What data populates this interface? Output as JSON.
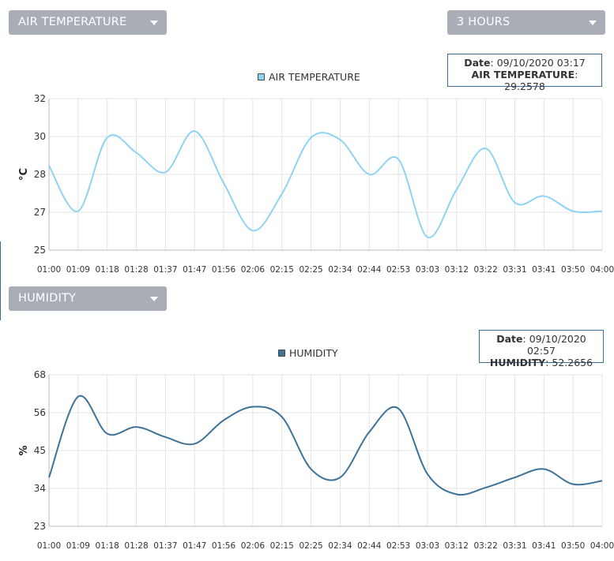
{
  "controls": {
    "range_selector": {
      "value": "3 HOURS"
    }
  },
  "charts": [
    {
      "selector_label": "AIR TEMPERATURE",
      "tooltip": {
        "date_label": "Date",
        "date_value": "09/10/2020 03:17",
        "series_label": "AIR TEMPERATURE",
        "series_value": "29.2578"
      }
    },
    {
      "selector_label": "HUMIDITY",
      "tooltip": {
        "date_label": "Date",
        "date_value": "09/10/2020 02:57",
        "series_label": "HUMIDITY",
        "series_value": "52.2656"
      }
    }
  ],
  "chart_data": [
    {
      "type": "line",
      "x": [
        "01:00",
        "01:09",
        "01:18",
        "01:28",
        "01:37",
        "01:47",
        "01:56",
        "02:06",
        "02:15",
        "02:25",
        "02:34",
        "02:44",
        "02:53",
        "03:03",
        "03:12",
        "03:22",
        "03:31",
        "03:41",
        "03:50",
        "04:00"
      ],
      "series": [
        {
          "name": "AIR TEMPERATURE",
          "color": "#8fd3f4",
          "values": [
            28.9,
            26.8,
            30.2,
            29.5,
            28.6,
            30.5,
            28.1,
            25.9,
            27.6,
            30.2,
            30.1,
            28.5,
            29.2,
            25.6,
            27.8,
            29.7,
            27.2,
            27.5,
            26.8,
            26.8
          ]
        }
      ],
      "ylabel": "°C",
      "ytick_labels": [
        "25",
        "27",
        "28",
        "30",
        "32"
      ],
      "ylim": [
        25,
        32
      ],
      "grid": true,
      "legend": "top-center"
    },
    {
      "type": "line",
      "x": [
        "01:00",
        "01:09",
        "01:18",
        "01:28",
        "01:37",
        "01:47",
        "01:56",
        "02:06",
        "02:15",
        "02:25",
        "02:34",
        "02:44",
        "02:53",
        "03:03",
        "03:12",
        "03:22",
        "03:31",
        "03:41",
        "03:50",
        "04:00"
      ],
      "series": [
        {
          "name": "HUMIDITY",
          "color": "#3d7398",
          "values": [
            37.5,
            61.5,
            50.5,
            52.5,
            49.5,
            47.5,
            54.5,
            58.5,
            55.5,
            40.0,
            37.5,
            51.0,
            58.0,
            38.5,
            32.5,
            34.5,
            37.5,
            40.0,
            35.5,
            36.5
          ]
        }
      ],
      "ylabel": "%",
      "ytick_labels": [
        "23",
        "34",
        "45",
        "56",
        "68"
      ],
      "ylim": [
        23,
        68
      ],
      "grid": true,
      "legend": "top-center"
    }
  ]
}
